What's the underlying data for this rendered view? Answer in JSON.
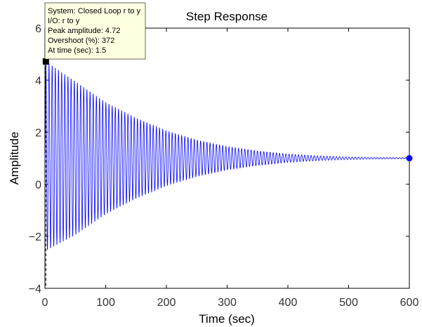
{
  "chart_data": {
    "type": "line",
    "title": "Step Response",
    "xlabel": "Time (sec)",
    "ylabel": "Amplitude",
    "xlim": [
      0,
      600
    ],
    "ylim": [
      -4,
      6
    ],
    "xticks": [
      0,
      100,
      200,
      300,
      400,
      500,
      600
    ],
    "yticks": [
      -4,
      -2,
      0,
      2,
      4,
      6
    ],
    "grid": false,
    "series": [
      {
        "color": "#0000ff",
        "final_value": 1,
        "envelope": {
          "x": [
            0,
            1.5,
            50,
            100,
            150,
            200,
            250,
            300,
            350,
            400,
            450,
            500,
            550,
            600
          ],
          "upper": [
            1,
            4.72,
            3.95,
            3.15,
            2.55,
            2.05,
            1.7,
            1.45,
            1.28,
            1.16,
            1.09,
            1.05,
            1.03,
            1.02
          ],
          "lower": [
            1,
            -2.55,
            -1.95,
            -1.15,
            -0.55,
            -0.05,
            0.3,
            0.55,
            0.72,
            0.84,
            0.91,
            0.95,
            0.97,
            0.98
          ]
        },
        "oscillation_period_sec": 5.2
      }
    ],
    "markers": [
      {
        "kind": "peak",
        "x": 1.5,
        "y": 4.72,
        "color": "#000000"
      },
      {
        "kind": "final-value",
        "x": 600,
        "y": 1,
        "color": "#0000ff"
      }
    ],
    "datatip": {
      "lines": [
        "System: Closed Loop r to y",
        "I/O: r to y",
        "Peak amplitude: 4.72",
        "Overshoot (%): 372",
        "At time (sec): 1.5"
      ],
      "background": "#ffffe1"
    }
  }
}
